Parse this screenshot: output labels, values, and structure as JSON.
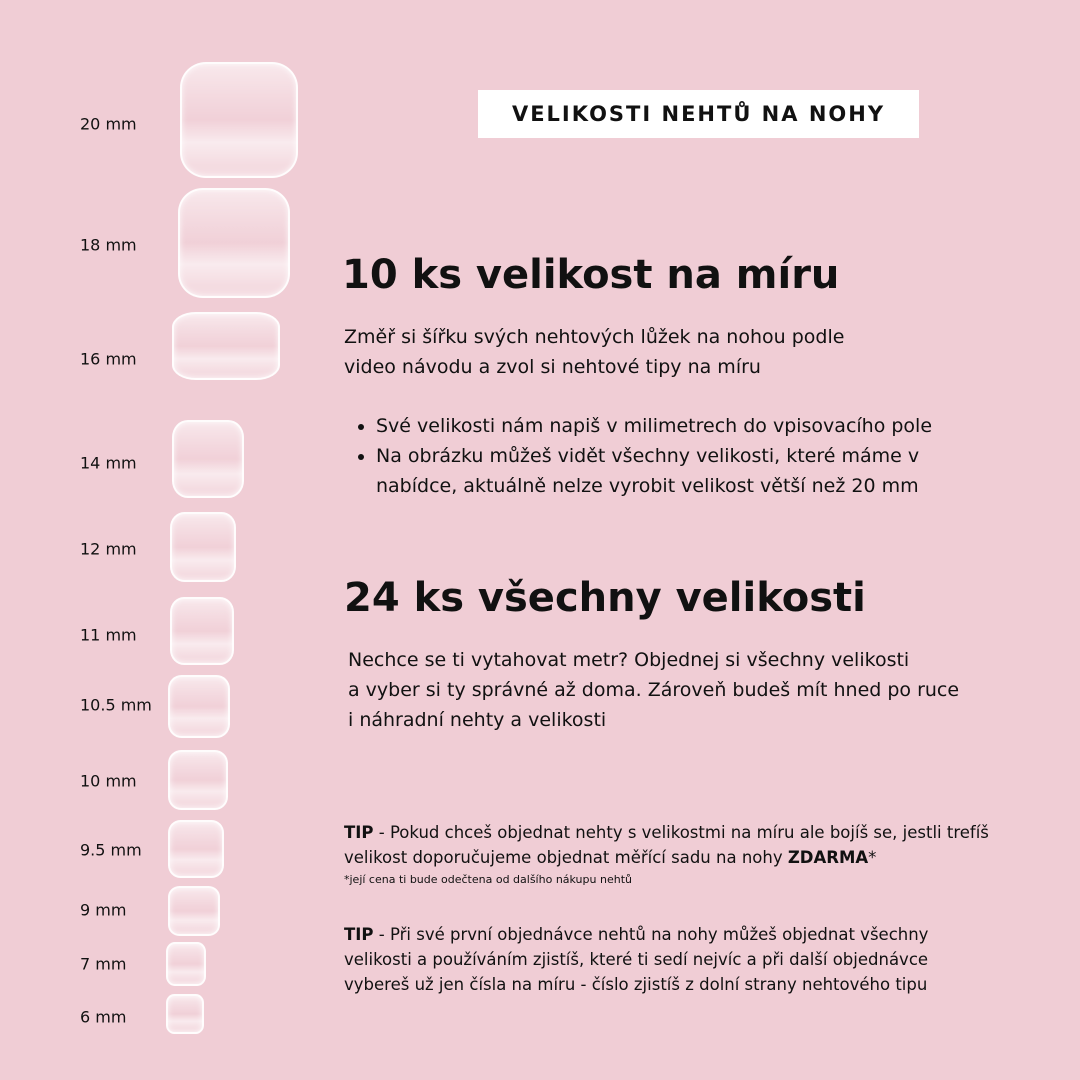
{
  "title": "VELIKOSTI NEHTŮ NA NOHY",
  "sizes": [
    "20 mm",
    "18 mm",
    "16 mm",
    "14 mm",
    "12 mm",
    "11 mm",
    "10.5 mm",
    "10 mm",
    "9.5 mm",
    "9 mm",
    "7 mm",
    "6 mm"
  ],
  "custom": {
    "heading": "10 ks velikost na míru",
    "text_1": "Změř si šířku svých nehtových lůžek na nohou podle",
    "text_2": "video návodu a zvol si nehtové tipy na míru",
    "bullets": [
      "Své velikosti nám napiš v milimetrech do vpisovacího pole",
      "Na obrázku můžeš vidět všechny velikosti, které máme v nabídce, aktuálně nelze vyrobit velikost větší než 20 mm"
    ]
  },
  "all": {
    "heading": "24 ks všechny velikosti",
    "text_1": "Nechce se ti vytahovat metr? Objednej si všechny velikosti",
    "text_2": "a vyber si ty správné až doma. Zároveň budeš mít hned po ruce",
    "text_3": "i náhradní nehty a velikosti"
  },
  "tips": [
    {
      "label": "TIP",
      "text": " - Pokud chceš objednat nehty s velikostmi na míru ale bojíš se, jestli trefíš velikost doporučujeme objednat měřící sadu na nohy ",
      "bold": "ZDARMA",
      "suffix": "*",
      "note": "*její cena ti bude odečtena od dalšího nákupu nehtů"
    },
    {
      "label": "TIP",
      "text": " - Při své první objednávce nehtů na nohy můžeš objednat všechny velikosti a používáním zjistíš, které ti sedí nejvíc a při další objednávce vybereš už jen čísla na míru - číslo zjistíš z dolní strany nehtového tipu"
    }
  ],
  "colors": {
    "background": "#f0cdd5",
    "title_box": "#ffffff",
    "text": "#111111"
  }
}
